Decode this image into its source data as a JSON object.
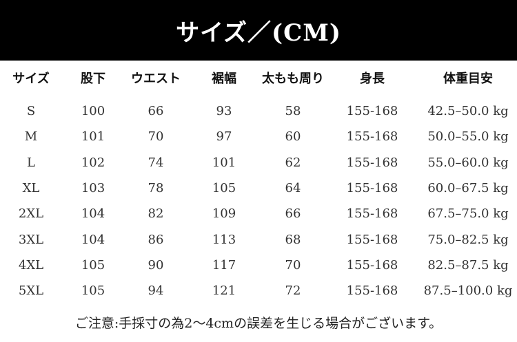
{
  "title": "サイズ／(CM)",
  "headers": [
    "サイズ",
    "股下",
    "ウエスト",
    "裾幅",
    "太もも周り",
    "身長",
    "体重目安"
  ],
  "rows": [
    [
      "S",
      "100",
      "66",
      "93",
      "58",
      "155-168",
      "42.5–50.0 kg"
    ],
    [
      "M",
      "101",
      "70",
      "97",
      "60",
      "155-168",
      "50.0–55.0 kg"
    ],
    [
      "L",
      "102",
      "74",
      "101",
      "62",
      "155-168",
      "55.0–60.0 kg"
    ],
    [
      "XL",
      "103",
      "78",
      "105",
      "64",
      "155-168",
      "60.0–67.5 kg"
    ],
    [
      "2XL",
      "104",
      "82",
      "109",
      "66",
      "155-168",
      "67.5–75.0 kg"
    ],
    [
      "3XL",
      "104",
      "86",
      "113",
      "68",
      "155-168",
      "75.0–82.5 kg"
    ],
    [
      "4XL",
      "105",
      "90",
      "117",
      "70",
      "155-168",
      "82.5–87.5 kg"
    ],
    [
      "5XL",
      "105",
      "94",
      "121",
      "72",
      "155-168",
      "87.5–100.0 kg"
    ]
  ],
  "note": "ご注意:手採寸の為2～4cmの誤差を生じる場合がございます。"
}
